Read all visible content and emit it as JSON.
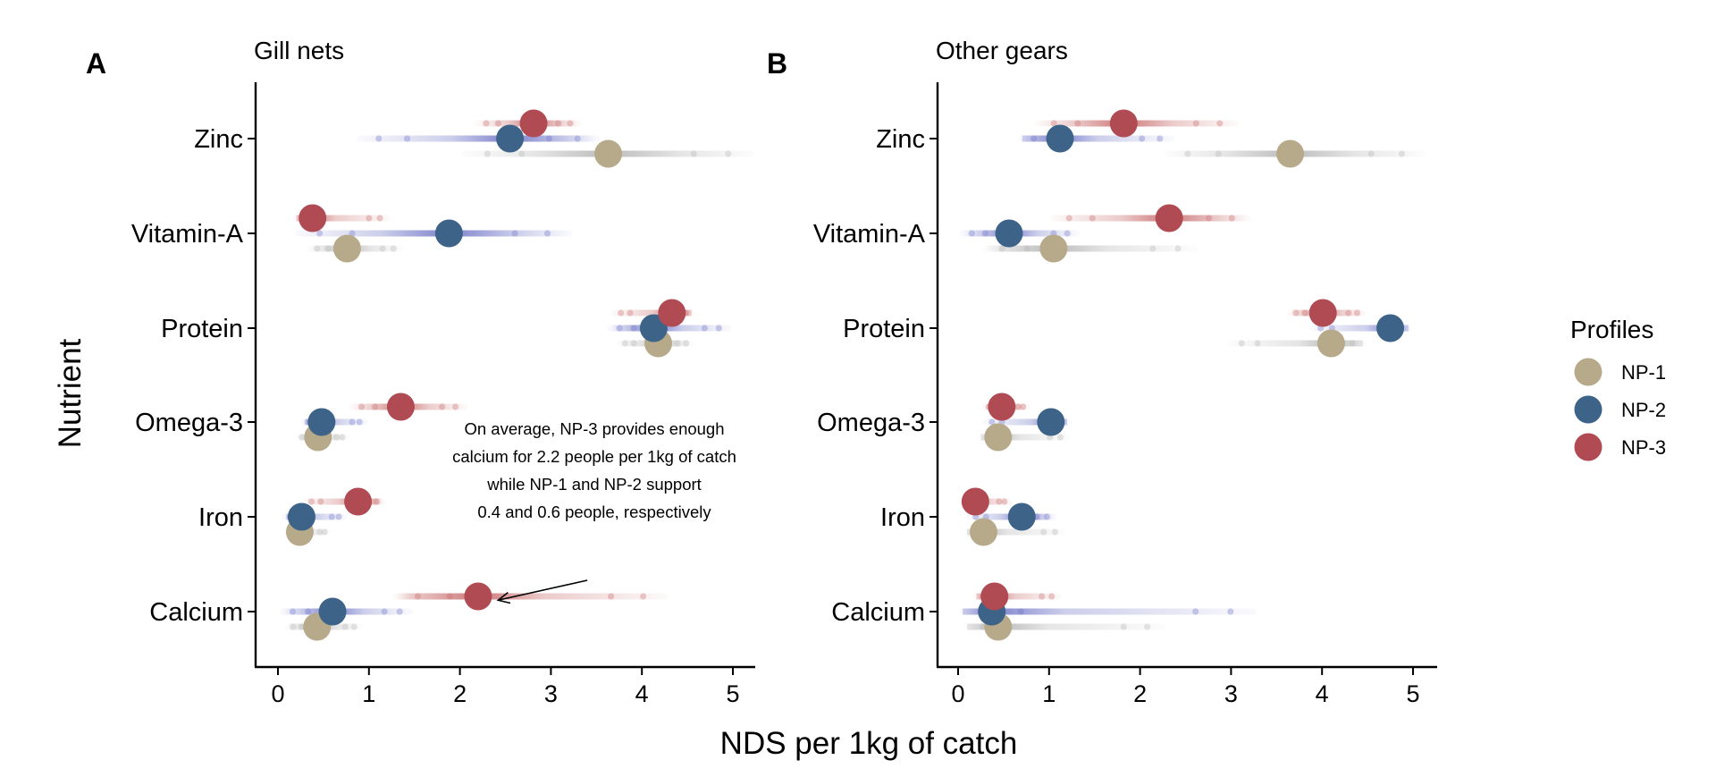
{
  "figure": {
    "ylabel": "Nutrient",
    "xlabel": "NDS per 1kg of catch"
  },
  "legend": {
    "title": "Profiles",
    "items": [
      {
        "key": "NP-1",
        "label": "NP-1",
        "color": "#B7AA8B"
      },
      {
        "key": "NP-2",
        "label": "NP-2",
        "color": "#3D6388"
      },
      {
        "key": "NP-3",
        "label": "NP-3",
        "color": "#B04A53"
      }
    ]
  },
  "colors": {
    "NP-1": "#B7AA8B",
    "NP-2": "#3D6388",
    "NP-3": "#B04A53",
    "trail-NP-1": "#B4B4B4",
    "trail-NP-2": "#6E74C6",
    "trail-NP-3": "#C86B6B"
  },
  "annotation": {
    "lines": [
      "On average, NP-3 provides enough",
      "calcium for 2.2 people per 1kg of catch",
      "while NP-1 and NP-2 support",
      "0.4 and 0.6 people, respectively"
    ],
    "arrow_from": {
      "x": 3.4,
      "category": "Calcium",
      "offset": 0.33
    },
    "arrow_to": {
      "x": 2.42,
      "category": "Calcium",
      "offset": 0.12
    }
  },
  "chart_data": [
    {
      "type": "scatter",
      "panel": "A",
      "title": "Gill nets",
      "xlabel": "NDS per 1kg of catch",
      "ylabel": "Nutrient",
      "xlim": [
        -0.25,
        5.25
      ],
      "xticks": [
        "0",
        "1",
        "2",
        "3",
        "4",
        "5"
      ],
      "categories": [
        "Zinc",
        "Vitamin-A",
        "Protein",
        "Omega-3",
        "Iron",
        "Calcium"
      ],
      "series": [
        {
          "name": "NP-1",
          "mean": [
            3.63,
            0.76,
            4.18,
            0.44,
            0.24,
            0.43
          ],
          "range": [
            [
              2.05,
              5.2
            ],
            [
              0.35,
              1.35
            ],
            [
              3.75,
              4.55
            ],
            [
              0.22,
              0.75
            ],
            [
              0.1,
              0.55
            ],
            [
              0.1,
              0.9
            ]
          ]
        },
        {
          "name": "NP-2",
          "mean": [
            2.55,
            1.88,
            4.13,
            0.48,
            0.26,
            0.6
          ],
          "range": [
            [
              0.9,
              3.5
            ],
            [
              0.22,
              3.2
            ],
            [
              3.65,
              4.95
            ],
            [
              0.28,
              0.95
            ],
            [
              0.08,
              0.72
            ],
            [
              0.05,
              1.45
            ]
          ]
        },
        {
          "name": "NP-3",
          "mean": [
            2.81,
            0.38,
            4.33,
            1.35,
            0.88,
            2.2
          ],
          "range": [
            [
              2.2,
              3.3
            ],
            [
              0.2,
              1.2
            ],
            [
              3.7,
              4.55
            ],
            [
              0.82,
              2.05
            ],
            [
              0.3,
              1.15
            ],
            [
              1.3,
              4.25
            ]
          ]
        }
      ]
    },
    {
      "type": "scatter",
      "panel": "B",
      "title": "Other gears",
      "xlabel": "NDS per 1kg of catch",
      "ylabel": "Nutrient",
      "xlim": [
        -0.25,
        5.25
      ],
      "xticks": [
        "0",
        "1",
        "2",
        "3",
        "4",
        "5"
      ],
      "categories": [
        "Zinc",
        "Vitamin-A",
        "Protein",
        "Omega-3",
        "Iron",
        "Calcium"
      ],
      "series": [
        {
          "name": "NP-1",
          "mean": [
            3.65,
            1.05,
            4.1,
            0.44,
            0.28,
            0.44
          ],
          "range": [
            [
              2.3,
              5.1
            ],
            [
              0.3,
              2.6
            ],
            [
              3.0,
              4.45
            ],
            [
              0.25,
              1.2
            ],
            [
              0.1,
              1.15
            ],
            [
              0.1,
              2.25
            ]
          ]
        },
        {
          "name": "NP-2",
          "mean": [
            1.12,
            0.56,
            4.75,
            1.02,
            0.7,
            0.37
          ],
          "range": [
            [
              0.7,
              2.35
            ],
            [
              0.05,
              1.3
            ],
            [
              3.9,
              4.95
            ],
            [
              0.3,
              1.2
            ],
            [
              0.12,
              1.05
            ],
            [
              0.05,
              3.25
            ]
          ]
        },
        {
          "name": "NP-3",
          "mean": [
            1.82,
            2.32,
            4.01,
            0.48,
            0.19,
            0.4
          ],
          "range": [
            [
              0.88,
              3.05
            ],
            [
              1.05,
              3.18
            ],
            [
              3.65,
              4.45
            ],
            [
              0.3,
              0.75
            ],
            [
              0.05,
              0.55
            ],
            [
              0.2,
              1.1
            ]
          ]
        }
      ]
    }
  ]
}
